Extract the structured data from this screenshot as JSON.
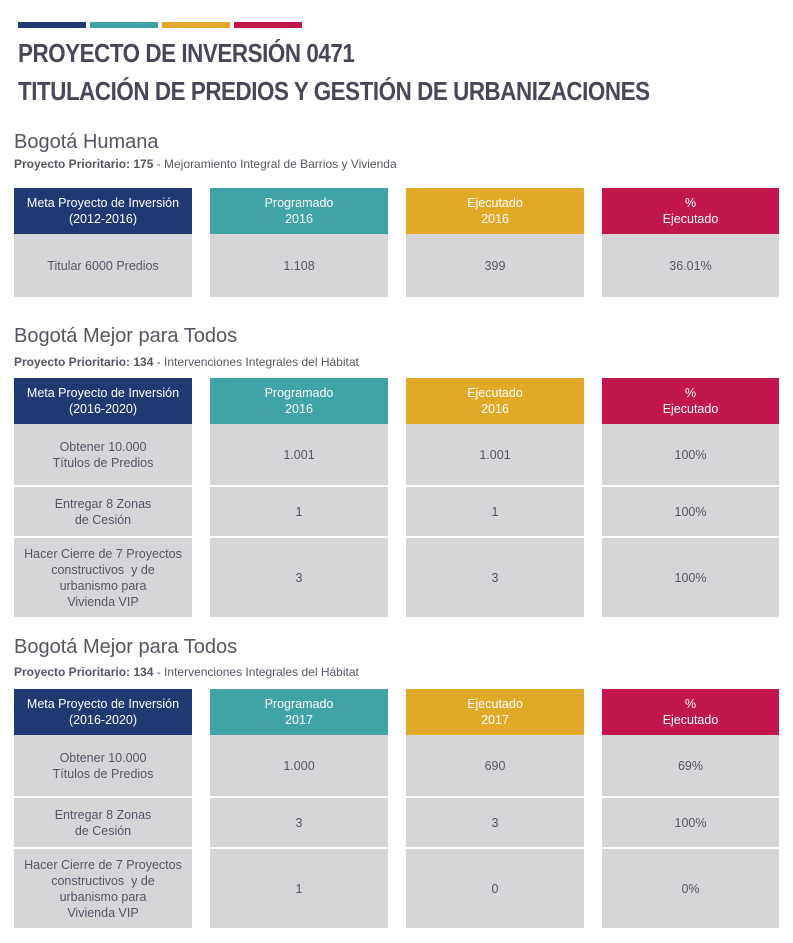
{
  "header": {
    "title_line1": "PROYECTO DE INVERSIÓN 0471",
    "title_line2": "TITULACIÓN DE PREDIOS Y GESTIÓN DE URBANIZACIONES"
  },
  "sections": [
    {
      "plan": "Bogotá Humana",
      "proyecto_label": "Proyecto Prioritario: 175",
      "proyecto_name": " - Mejoramiento Integral de Barrios y Vivienda",
      "headers": {
        "meta": [
          "Meta Proyecto de Inversión",
          "(2012-2016)"
        ],
        "programado": [
          "Programado",
          "2016"
        ],
        "ejecutado": [
          "Ejecutado",
          "2016"
        ],
        "porcentaje": [
          "%",
          "Ejecutado"
        ]
      },
      "rows": [
        {
          "meta": [
            "Titular 6000 Predios"
          ],
          "programado": "1.108",
          "ejecutado": "399",
          "porcentaje": "36.01%"
        }
      ]
    },
    {
      "plan": "Bogotá Mejor para Todos",
      "proyecto_label": "Proyecto Prioritario: 134",
      "proyecto_name": " - Intervenciones Integrales del Hábitat",
      "headers": {
        "meta": [
          "Meta Proyecto de Inversión",
          "(2016-2020)"
        ],
        "programado": [
          "Programado",
          "2016"
        ],
        "ejecutado": [
          "Ejecutado",
          "2016"
        ],
        "porcentaje": [
          "%",
          "Ejecutado"
        ]
      },
      "rows": [
        {
          "meta": [
            "Obtener 10.000",
            "Títulos de Predios"
          ],
          "programado": "1.001",
          "ejecutado": "1.001",
          "porcentaje": "100%"
        },
        {
          "meta": [
            "Entregar 8 Zonas",
            "de Cesión"
          ],
          "programado": "1",
          "ejecutado": "1",
          "porcentaje": "100%"
        },
        {
          "meta": [
            "Hacer Cierre de 7 Proyectos",
            "constructivos  y de",
            "urbanismo para",
            "Vivienda VIP"
          ],
          "programado": "3",
          "ejecutado": "3",
          "porcentaje": "100%"
        }
      ]
    },
    {
      "plan": "Bogotá Mejor para Todos",
      "proyecto_label": "Proyecto Prioritario: 134",
      "proyecto_name": " - Intervenciones Integrales del Hábitat",
      "headers": {
        "meta": [
          "Meta Proyecto de Inversión",
          "(2016-2020)"
        ],
        "programado": [
          "Programado",
          "2017"
        ],
        "ejecutado": [
          "Ejecutado",
          "2017"
        ],
        "porcentaje": [
          "%",
          "Ejecutado"
        ]
      },
      "rows": [
        {
          "meta": [
            "Obtener 10.000",
            "Títulos de Predios"
          ],
          "programado": "1.000",
          "ejecutado": "690",
          "porcentaje": "69%"
        },
        {
          "meta": [
            "Entregar 8 Zonas",
            "de Cesión"
          ],
          "programado": "3",
          "ejecutado": "3",
          "porcentaje": "100%"
        },
        {
          "meta": [
            "Hacer Cierre de 7 Proyectos",
            "constructivos  y de",
            "urbanismo para",
            "Vivienda VIP"
          ],
          "programado": "1",
          "ejecutado": "0",
          "porcentaje": "0%"
        }
      ]
    }
  ]
}
